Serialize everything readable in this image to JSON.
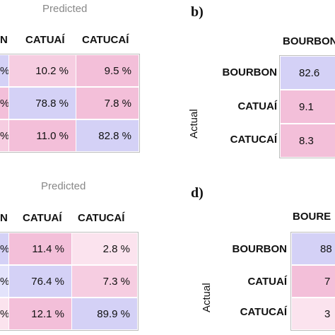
{
  "colors": {
    "diag_strong": "#d4d1f6",
    "diag_light": "#e3e3fb",
    "off_strong": "#f3bfd9",
    "off_mid": "#f6cde1",
    "off_light": "#fbe3ee",
    "pink_edge": "#f6c8dc"
  },
  "panel_a": {
    "predicted": "Predicted",
    "cols": [
      "N",
      "CATUAÍ",
      "CATUCAÍ"
    ],
    "cells": [
      [
        "%",
        "10.2 %",
        "9.5 %"
      ],
      [
        "%",
        "78.8 %",
        "7.8 %"
      ],
      [
        "%",
        "11.0 %",
        "82.8 %"
      ]
    ]
  },
  "panel_b": {
    "label": "b)",
    "col": "BOURBON",
    "actual": "Actual",
    "rows": [
      "BOURBON",
      "CATUAÍ",
      "CATUCAÍ"
    ],
    "cells": [
      "82.6",
      "9.1",
      "8.3"
    ]
  },
  "panel_c": {
    "predicted": "Predicted",
    "cols": [
      "N",
      "CATUAÍ",
      "CATUCAÍ"
    ],
    "cells": [
      [
        "%",
        "11.4 %",
        "2.8 %"
      ],
      [
        "%",
        "76.4 %",
        "7.3 %"
      ],
      [
        "%",
        "12.1 %",
        "89.9 %"
      ]
    ]
  },
  "panel_d": {
    "label": "d)",
    "col": "BOURE",
    "actual": "Actual",
    "rows": [
      "BOURBON",
      "CATUAÍ",
      "CATUCAÍ"
    ],
    "cells": [
      "88",
      "7",
      "3"
    ]
  }
}
